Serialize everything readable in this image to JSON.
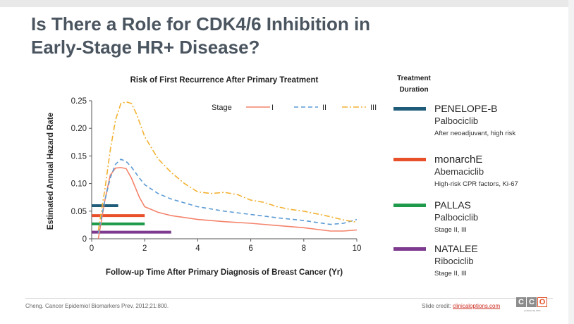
{
  "slide": {
    "title_line1": "Is There a Role for CDK4/6 Inhibition in",
    "title_line2": "Early-Stage HR+ Disease?"
  },
  "chart_data": {
    "type": "line",
    "title": "Risk of First Recurrence After Primary Treatment",
    "xlabel": "Follow-up Time After Primary Diagnosis of Breast Cancer (Yr)",
    "ylabel": "Estimated Annual Hazard Rate",
    "xlim": [
      0,
      10
    ],
    "ylim": [
      0,
      0.25
    ],
    "xticks": [
      "0",
      "2",
      "4",
      "6",
      "8",
      "10"
    ],
    "yticks": [
      "0",
      "0.05",
      "0.10",
      "0.15",
      "0.20",
      "0.25"
    ],
    "grid": false,
    "legend": {
      "title": "Stage",
      "placement": "top-right"
    },
    "series": [
      {
        "name": "I",
        "color": "#f4836b",
        "dash": "solid",
        "points": [
          [
            0.25,
            0.0
          ],
          [
            0.5,
            0.07
          ],
          [
            0.7,
            0.115
          ],
          [
            0.9,
            0.128
          ],
          [
            1.1,
            0.129
          ],
          [
            1.3,
            0.127
          ],
          [
            1.5,
            0.11
          ],
          [
            1.8,
            0.075
          ],
          [
            2.0,
            0.058
          ],
          [
            2.5,
            0.048
          ],
          [
            3.0,
            0.042
          ],
          [
            4.0,
            0.035
          ],
          [
            5.0,
            0.031
          ],
          [
            6.0,
            0.028
          ],
          [
            7.0,
            0.024
          ],
          [
            8.0,
            0.02
          ],
          [
            9.0,
            0.014
          ],
          [
            9.5,
            0.014
          ],
          [
            10.0,
            0.016
          ]
        ]
      },
      {
        "name": "II",
        "color": "#5b9bd5",
        "dash": "dashed",
        "points": [
          [
            0.25,
            0.01
          ],
          [
            0.5,
            0.07
          ],
          [
            0.7,
            0.11
          ],
          [
            0.9,
            0.135
          ],
          [
            1.1,
            0.144
          ],
          [
            1.3,
            0.14
          ],
          [
            1.5,
            0.13
          ],
          [
            1.8,
            0.11
          ],
          [
            2.0,
            0.098
          ],
          [
            2.5,
            0.082
          ],
          [
            3.0,
            0.072
          ],
          [
            4.0,
            0.058
          ],
          [
            5.0,
            0.05
          ],
          [
            6.0,
            0.044
          ],
          [
            7.0,
            0.038
          ],
          [
            8.0,
            0.033
          ],
          [
            9.0,
            0.026
          ],
          [
            9.5,
            0.028
          ],
          [
            10.0,
            0.035
          ]
        ]
      },
      {
        "name": "III",
        "color": "#f2b233",
        "dash": "dashdot",
        "points": [
          [
            0.25,
            0.015
          ],
          [
            0.5,
            0.09
          ],
          [
            0.7,
            0.16
          ],
          [
            0.9,
            0.215
          ],
          [
            1.1,
            0.245
          ],
          [
            1.3,
            0.248
          ],
          [
            1.5,
            0.245
          ],
          [
            1.7,
            0.225
          ],
          [
            2.0,
            0.185
          ],
          [
            2.5,
            0.145
          ],
          [
            3.0,
            0.12
          ],
          [
            3.5,
            0.1
          ],
          [
            4.0,
            0.085
          ],
          [
            4.5,
            0.082
          ],
          [
            5.0,
            0.084
          ],
          [
            5.5,
            0.08
          ],
          [
            6.0,
            0.07
          ],
          [
            6.5,
            0.066
          ],
          [
            7.0,
            0.058
          ],
          [
            7.5,
            0.053
          ],
          [
            8.0,
            0.05
          ],
          [
            8.5,
            0.045
          ],
          [
            9.0,
            0.04
          ],
          [
            9.5,
            0.034
          ],
          [
            10.0,
            0.03
          ]
        ]
      }
    ],
    "treatment_bars": [
      {
        "trial": "PENELOPE-B",
        "color": "#1f5c7a",
        "start": 0,
        "end": 1,
        "level": 0.06
      },
      {
        "trial": "monarchE",
        "color": "#e8502a",
        "start": 0,
        "end": 2,
        "level": 0.042
      },
      {
        "trial": "PALLAS",
        "color": "#1e9a4a",
        "start": 0,
        "end": 2,
        "level": 0.027
      },
      {
        "trial": "NATALEE",
        "color": "#7d3a8f",
        "start": 0,
        "end": 3,
        "level": 0.012
      }
    ]
  },
  "treatment_panel": {
    "header_line1": "Treatment",
    "header_line2": "Duration",
    "trials": [
      {
        "name": "PENELOPE-B",
        "drug": "Palbociclib",
        "note": "After neoadjuvant, high risk",
        "color": "#1f5c7a"
      },
      {
        "name": "monarchE",
        "drug": "Abemaciclib",
        "note": "High-risk CPR factors, Ki-67",
        "color": "#e8502a"
      },
      {
        "name": "PALLAS",
        "drug": "Palbociclib",
        "note": "Stage II, III",
        "color": "#1e9a4a"
      },
      {
        "name": "NATALEE",
        "drug": "Ribociclib",
        "note": "Stage II, III",
        "color": "#7d3a8f"
      }
    ]
  },
  "footer": {
    "citation": "Cheng. Cancer Epidemiol Biomarkers Prev. 2012;21:800.",
    "credit_prefix": "Slide credit: ",
    "credit_link": "clinicaloptions.com",
    "logo_letters": [
      "C",
      "C",
      "O"
    ],
    "logo_sub": "powered by CCO"
  }
}
